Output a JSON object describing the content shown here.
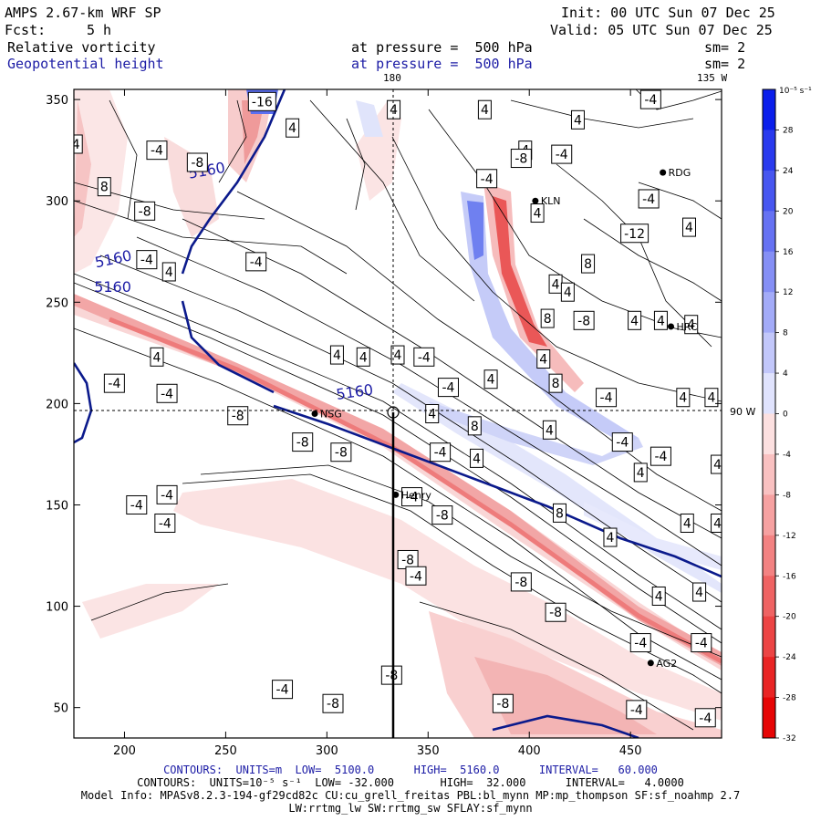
{
  "header": {
    "model": "AMPS 2.67-km WRF SP",
    "init": "Init: 00 UTC Sun 07 Dec 25",
    "fcst_label": "Fcst:",
    "fcst_value": "5 h",
    "valid": "Valid: 05 UTC Sun 07 Dec 25",
    "field1": "Relative vorticity",
    "field1_level": "at pressure =  500 hPa",
    "field1_sm": "sm= 2",
    "field2": "Geopotential height",
    "field2_level": "at pressure =  500 hPa",
    "field2_sm": "sm= 2"
  },
  "map_labels": {
    "lon_180": "180",
    "lon_135w": "135 W",
    "lon_90w": "90 W"
  },
  "stations": [
    {
      "name": "RDG",
      "x": 466,
      "y": 314
    },
    {
      "name": "KLN",
      "x": 403,
      "y": 300
    },
    {
      "name": "HRC",
      "x": 470,
      "y": 238
    },
    {
      "name": "NSG",
      "x": 294,
      "y": 195
    },
    {
      "name": "Henry",
      "x": 334,
      "y": 155
    },
    {
      "name": "AG2",
      "x": 460,
      "y": 72
    }
  ],
  "chart_data": {
    "type": "contour-map",
    "xlim": [
      175,
      495
    ],
    "ylim": [
      35,
      355
    ],
    "xticks": [
      200,
      250,
      300,
      350,
      400,
      450
    ],
    "yticks": [
      50,
      100,
      150,
      200,
      250,
      300,
      350
    ],
    "height_contours": [
      {
        "label": "5160",
        "level": 5160
      },
      {
        "label": "5160",
        "level": 5160
      },
      {
        "label": "5160",
        "level": 5160
      },
      {
        "label": "5160",
        "level": 5160
      }
    ],
    "vorticity_labels": [
      {
        "v": "-16",
        "x": 268,
        "y": 349
      },
      {
        "v": "4",
        "x": 333,
        "y": 345
      },
      {
        "v": "4",
        "x": 283,
        "y": 336
      },
      {
        "v": "4",
        "x": 398,
        "y": 325
      },
      {
        "v": "4",
        "x": 378,
        "y": 345
      },
      {
        "v": "4",
        "x": 424,
        "y": 340
      },
      {
        "v": "-4",
        "x": 460,
        "y": 350
      },
      {
        "v": "4",
        "x": 176,
        "y": 328
      },
      {
        "v": "-4",
        "x": 216,
        "y": 325
      },
      {
        "v": "-8",
        "x": 236,
        "y": 319
      },
      {
        "v": "4",
        "x": 160,
        "y": 313
      },
      {
        "v": "8",
        "x": 190,
        "y": 307
      },
      {
        "v": "-8",
        "x": 396,
        "y": 321
      },
      {
        "v": "-4",
        "x": 379,
        "y": 311
      },
      {
        "v": "-4",
        "x": 416,
        "y": 323
      },
      {
        "v": "-4",
        "x": 459,
        "y": 301
      },
      {
        "v": "-8",
        "x": 210,
        "y": 295
      },
      {
        "v": "-4",
        "x": 146,
        "y": 294
      },
      {
        "v": "4",
        "x": 404,
        "y": 294
      },
      {
        "v": "-8",
        "x": 150,
        "y": 286
      },
      {
        "v": "-12",
        "x": 452,
        "y": 284
      },
      {
        "v": "4",
        "x": 479,
        "y": 287
      },
      {
        "v": "-4",
        "x": 211,
        "y": 271
      },
      {
        "v": "8",
        "x": 429,
        "y": 269
      },
      {
        "v": "-4",
        "x": 112,
        "y": 271
      },
      {
        "v": "-4",
        "x": 265,
        "y": 270
      },
      {
        "v": "4",
        "x": 222,
        "y": 265
      },
      {
        "v": "4",
        "x": 413,
        "y": 259
      },
      {
        "v": "-4",
        "x": 140,
        "y": 254
      },
      {
        "v": "4",
        "x": 419,
        "y": 255
      },
      {
        "v": "-8",
        "x": 94,
        "y": 244
      },
      {
        "v": "8",
        "x": 409,
        "y": 242
      },
      {
        "v": "-8",
        "x": 427,
        "y": 241
      },
      {
        "v": "4",
        "x": 452,
        "y": 241
      },
      {
        "v": "4",
        "x": 465,
        "y": 241
      },
      {
        "v": "4",
        "x": 480,
        "y": 239
      },
      {
        "v": "-4",
        "x": 135,
        "y": 228
      },
      {
        "v": "4",
        "x": 98,
        "y": 221
      },
      {
        "v": "4",
        "x": 216,
        "y": 223
      },
      {
        "v": "4",
        "x": 305,
        "y": 224
      },
      {
        "v": "4",
        "x": 318,
        "y": 223
      },
      {
        "v": "4",
        "x": 335,
        "y": 224
      },
      {
        "v": "-4",
        "x": 348,
        "y": 223
      },
      {
        "v": "4",
        "x": 407,
        "y": 222
      },
      {
        "v": "4",
        "x": 381,
        "y": 212
      },
      {
        "v": "8",
        "x": 413,
        "y": 210
      },
      {
        "v": "-4",
        "x": 195,
        "y": 210
      },
      {
        "v": "-4",
        "x": 221,
        "y": 205
      },
      {
        "v": "-4",
        "x": 360,
        "y": 208
      },
      {
        "v": "-4",
        "x": 438,
        "y": 203
      },
      {
        "v": "4",
        "x": 476,
        "y": 203
      },
      {
        "v": "4",
        "x": 490,
        "y": 203
      },
      {
        "v": "-8",
        "x": 256,
        "y": 194
      },
      {
        "v": "4",
        "x": 352,
        "y": 195
      },
      {
        "v": "8",
        "x": 373,
        "y": 189
      },
      {
        "v": "-8",
        "x": 288,
        "y": 181
      },
      {
        "v": "4",
        "x": 410,
        "y": 187
      },
      {
        "v": "-4",
        "x": 446,
        "y": 181
      },
      {
        "v": "-8",
        "x": 307,
        "y": 176
      },
      {
        "v": "-4",
        "x": 356,
        "y": 176
      },
      {
        "v": "4",
        "x": 374,
        "y": 173
      },
      {
        "v": "-4",
        "x": 465,
        "y": 174
      },
      {
        "v": "4",
        "x": 493,
        "y": 170
      },
      {
        "v": "4",
        "x": 455,
        "y": 166
      },
      {
        "v": "-4",
        "x": 221,
        "y": 155
      },
      {
        "v": "-4",
        "x": 342,
        "y": 154
      },
      {
        "v": "-8",
        "x": 357,
        "y": 145
      },
      {
        "v": "-4",
        "x": 206,
        "y": 150
      },
      {
        "v": "8",
        "x": 415,
        "y": 146
      },
      {
        "v": "-4",
        "x": 220,
        "y": 141
      },
      {
        "v": "4",
        "x": 478,
        "y": 141
      },
      {
        "v": "4",
        "x": 493,
        "y": 141
      },
      {
        "v": "4",
        "x": 440,
        "y": 134
      },
      {
        "v": "-8",
        "x": 340,
        "y": 123
      },
      {
        "v": "-8",
        "x": 396,
        "y": 112
      },
      {
        "v": "-4",
        "x": 344,
        "y": 115
      },
      {
        "v": "4",
        "x": 464,
        "y": 105
      },
      {
        "v": "4",
        "x": 484,
        "y": 107
      },
      {
        "v": "-8",
        "x": 413,
        "y": 97
      },
      {
        "v": "-4",
        "x": 135,
        "y": 100
      },
      {
        "v": "-4",
        "x": 455,
        "y": 82
      },
      {
        "v": "-4",
        "x": 485,
        "y": 82
      },
      {
        "v": "-8",
        "x": 332,
        "y": 66
      },
      {
        "v": "-4",
        "x": 278,
        "y": 59
      },
      {
        "v": "-8",
        "x": 303,
        "y": 52
      },
      {
        "v": "-8",
        "x": 387,
        "y": 52
      },
      {
        "v": "-4",
        "x": 453,
        "y": 49
      },
      {
        "v": "-4",
        "x": 487,
        "y": 45
      }
    ],
    "colorbar": {
      "unit": "10⁻⁵ s⁻¹",
      "labels": [
        "32",
        "28",
        "24",
        "20",
        "16",
        "12",
        "8",
        "4",
        "0",
        "-4",
        "-8",
        "-12",
        "-16",
        "-20",
        "-24",
        "-28",
        "-32"
      ]
    }
  },
  "footer": {
    "line1": "CONTOURS:  UNITS=m  LOW=  5100.0      HIGH=  5160.0      INTERVAL=   60.000",
    "line2": "CONTOURS:  UNITS=10⁻⁵ s⁻¹  LOW= -32.000       HIGH=  32.000      INTERVAL=   4.0000",
    "line3": "Model Info: MPASv8.2.3-194-gf29cd82c CU:cu_grell_freitas PBL:bl_mynn MP:mp_thompson SF:sf_noahmp 2.7",
    "line4": "LW:rrtmg_lw SW:rrtmg_sw SFLAY:sf_mynn"
  },
  "colors": {
    "height_line": "#0b1a8c",
    "pos_strong": "#0a1fd6",
    "neg_strong": "#e81b1b"
  }
}
